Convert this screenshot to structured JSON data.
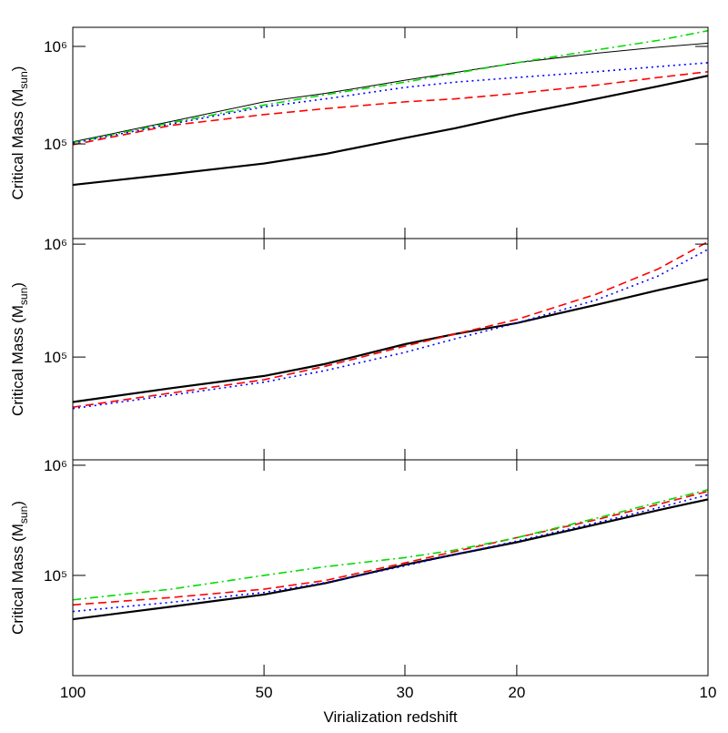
{
  "chart_data": [
    {
      "type": "line",
      "xscale": "log",
      "yscale": "log",
      "ylabel": {
        "text": "Critical Mass (M",
        "subscript": "sun",
        "close": ")"
      },
      "x": [
        100,
        70,
        50,
        40,
        30,
        25,
        20,
        15,
        12,
        10
      ],
      "xlim": [
        100,
        10
      ],
      "xticks": [
        100,
        50,
        30,
        20,
        10
      ],
      "ylim": [
        10700,
        1570000
      ],
      "yticks": [
        {
          "value": 100000,
          "label": "10⁵"
        },
        {
          "value": 1000000,
          "label": "10⁶"
        }
      ],
      "series": [
        {
          "color": "#000000",
          "width": 2.2,
          "dash": "solid",
          "values": [
            38000,
            49000,
            63000,
            79000,
            115000,
            145000,
            200000,
            290000,
            390000,
            500000
          ]
        },
        {
          "color": "#000000",
          "width": 1,
          "dash": "solid",
          "values": [
            105000,
            170000,
            270000,
            330000,
            450000,
            540000,
            680000,
            850000,
            980000,
            1080000
          ]
        },
        {
          "color": "#00dd00",
          "width": 1.6,
          "dash": "dashdot",
          "values": [
            103000,
            165000,
            250000,
            320000,
            430000,
            530000,
            680000,
            920000,
            1150000,
            1450000
          ]
        },
        {
          "color": "#0000ff",
          "width": 1.6,
          "dash": "dotted",
          "values": [
            102000,
            160000,
            240000,
            290000,
            380000,
            430000,
            480000,
            550000,
            620000,
            680000
          ]
        },
        {
          "color": "#ff0000",
          "width": 1.6,
          "dash": "dashed",
          "values": [
            98000,
            155000,
            200000,
            230000,
            270000,
            290000,
            330000,
            400000,
            480000,
            550000
          ]
        }
      ]
    },
    {
      "type": "line",
      "xscale": "log",
      "yscale": "log",
      "ylabel": {
        "text": "Critical Mass (M",
        "subscript": "sun",
        "close": ")"
      },
      "x": [
        100,
        70,
        50,
        40,
        30,
        25,
        20,
        15,
        12,
        10
      ],
      "xlim": [
        100,
        10
      ],
      "xticks": [
        100,
        50,
        30,
        20,
        10
      ],
      "ylim": [
        12300,
        1120000
      ],
      "yticks": [
        {
          "value": 100000,
          "label": "10⁵"
        },
        {
          "value": 1000000,
          "label": "10⁶"
        }
      ],
      "series": [
        {
          "color": "#000000",
          "width": 2.2,
          "dash": "solid",
          "values": [
            40000,
            53000,
            68000,
            87000,
            130000,
            160000,
            200000,
            290000,
            390000,
            490000
          ]
        },
        {
          "color": "#ff0000",
          "width": 1.6,
          "dash": "dashed",
          "values": [
            36000,
            48000,
            63000,
            83000,
            125000,
            160000,
            215000,
            360000,
            600000,
            1050000
          ]
        },
        {
          "color": "#0000ff",
          "width": 1.6,
          "dash": "dotted",
          "values": [
            35000,
            46000,
            60000,
            76000,
            110000,
            145000,
            200000,
            320000,
            520000,
            900000
          ]
        }
      ]
    },
    {
      "type": "line",
      "xscale": "log",
      "yscale": "log",
      "ylabel": {
        "text": "Critical Mass (M",
        "subscript": "sun",
        "close": ")"
      },
      "xlabel": "Virialization redshift",
      "x": [
        100,
        70,
        50,
        40,
        30,
        25,
        20,
        15,
        12,
        10
      ],
      "xlim": [
        100,
        10
      ],
      "xticks": [
        100,
        50,
        30,
        20,
        10
      ],
      "ylim": [
        12300,
        1120000
      ],
      "yticks": [
        {
          "value": 100000,
          "label": "10⁵"
        },
        {
          "value": 1000000,
          "label": "10⁶"
        }
      ],
      "series": [
        {
          "color": "#000000",
          "width": 2.2,
          "dash": "solid",
          "values": [
            40000,
            52000,
            67000,
            85000,
            125000,
            155000,
            200000,
            290000,
            390000,
            490000
          ]
        },
        {
          "color": "#0000ff",
          "width": 1.6,
          "dash": "dotted",
          "values": [
            47000,
            57000,
            70000,
            86000,
            122000,
            155000,
            205000,
            300000,
            410000,
            540000
          ]
        },
        {
          "color": "#ff0000",
          "width": 1.6,
          "dash": "dashed",
          "values": [
            54000,
            63000,
            75000,
            90000,
            130000,
            165000,
            220000,
            320000,
            440000,
            580000
          ]
        },
        {
          "color": "#00dd00",
          "width": 1.6,
          "dash": "dashdot",
          "values": [
            60000,
            75000,
            100000,
            120000,
            145000,
            170000,
            220000,
            330000,
            460000,
            600000
          ]
        }
      ]
    }
  ]
}
